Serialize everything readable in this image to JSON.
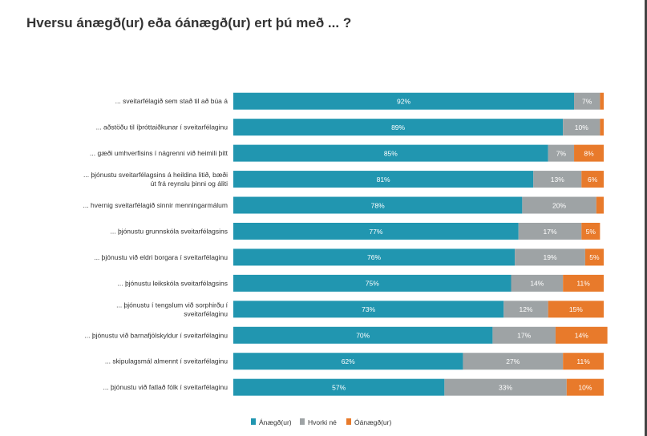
{
  "chart_data": {
    "type": "bar",
    "stacked": true,
    "orientation": "horizontal",
    "title": "Hversu ánægð(ur) eða óánægð(ur) ert þú með ... ?",
    "xlabel": "",
    "ylabel": "",
    "xlim": [
      0,
      100
    ],
    "grid": false,
    "legend_position": "bottom",
    "categories": [
      "... sveitarfélagið sem stað til að búa á",
      "... aðstöðu til íþróttaiðkunar í sveitarfélaginu",
      "... gæði umhverfisins í nágrenni við heimili þitt",
      "... þjónustu sveitarfélagsins á heildina litið, bæði út frá reynslu þinni og áliti",
      "... hvernig sveitarfélagið sinnir menningarmálum",
      "... þjónustu grunnskóla sveitarfélagsins",
      "... þjónustu við eldri borgara í sveitarfélaginu",
      "... þjónustu leikskóla sveitarfélagsins",
      "... þjónustu í tengslum við sorphirðu í sveitarfélaginu",
      "... þjónustu við barnafjölskyldur í sveitarfélaginu",
      "... skipulagsmál almennt í sveitarfélaginu",
      "... þjónustu við fatlað fólk í sveitarfélaginu"
    ],
    "series": [
      {
        "name": "Ánægð(ur)",
        "color": "#2196B0",
        "values": [
          92,
          89,
          85,
          81,
          78,
          77,
          76,
          75,
          73,
          70,
          62,
          57
        ]
      },
      {
        "name": "Hvorki né",
        "color": "#9EA3A5",
        "values": [
          7,
          10,
          7,
          13,
          20,
          17,
          19,
          14,
          12,
          17,
          27,
          33
        ]
      },
      {
        "name": "Óánægð(ur)",
        "color": "#E87A2B",
        "values": [
          1,
          1,
          8,
          6,
          2,
          5,
          5,
          11,
          15,
          14,
          11,
          10
        ]
      }
    ],
    "data_labels": [
      [
        "92%",
        "89%",
        "85%",
        "81%",
        "78%",
        "77%",
        "76%",
        "75%",
        "73%",
        "70%",
        "62%",
        "57%"
      ],
      [
        "7%",
        "10%",
        "7%",
        "13%",
        "20%",
        "17%",
        "19%",
        "14%",
        "12%",
        "17%",
        "27%",
        "33%"
      ],
      [
        "",
        "",
        "8%",
        "6%",
        "",
        "5%",
        "5%",
        "11%",
        "15%",
        "14%",
        "11%",
        "10%"
      ]
    ]
  }
}
